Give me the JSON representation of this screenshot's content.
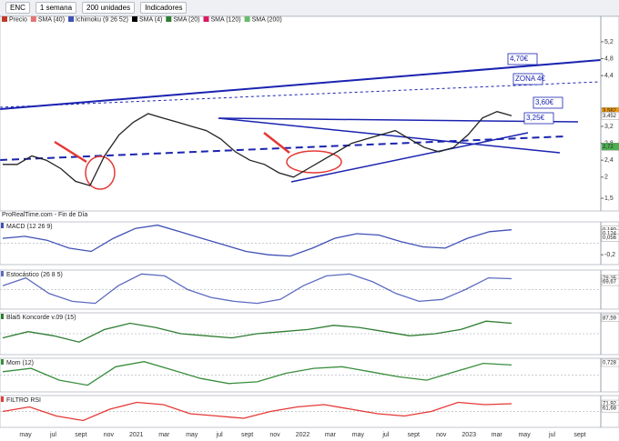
{
  "toolbar": {
    "items": [
      "ENC",
      "1 semana",
      "200 unidades",
      "Indicadores"
    ]
  },
  "legend": [
    {
      "name": "Precio",
      "color": "#c0392b"
    },
    {
      "name": "SMA (40)",
      "color": "#e57373"
    },
    {
      "name": "Ichimoku (9 26 52)",
      "color": "#3f51b5"
    },
    {
      "name": "SMA (4)",
      "color": "#000000"
    },
    {
      "name": "SMA (20)",
      "color": "#2e7d32"
    },
    {
      "name": "SMA (120)",
      "color": "#d81b60"
    },
    {
      "name": "SMA (200)",
      "color": "#66bb6a"
    }
  ],
  "source": "ProRealTime.com - Fin de Día",
  "time_axis": {
    "labels": [
      "may",
      "jul",
      "sept",
      "nov",
      "2021",
      "mar",
      "may",
      "jul",
      "sept",
      "nov",
      "2022",
      "mar",
      "may",
      "jul",
      "sept",
      "nov",
      "2023",
      "mar",
      "may",
      "jul",
      "sept"
    ]
  },
  "chart_data": [
    {
      "type": "line",
      "series": [
        {
          "color": "#222222",
          "values": [
            2.3,
            2.3,
            2.5,
            2.4,
            2.2,
            1.9,
            1.8,
            2.5,
            3.0,
            3.3,
            3.5,
            3.4,
            3.3,
            3.2,
            3.1,
            2.9,
            2.6,
            2.4,
            2.3,
            2.1,
            2.0,
            2.2,
            2.4,
            2.6,
            2.8,
            2.9,
            3.0,
            3.1,
            2.9,
            2.7,
            2.6,
            2.7,
            3.0,
            3.4,
            3.55,
            3.45
          ]
        }
      ],
      "ylim": [
        1.2,
        5.8
      ],
      "yticks": [
        {
          "value": 1.5,
          "label": "1,5"
        },
        2,
        {
          "value": 2.4,
          "label": "2,4"
        },
        {
          "value": 2.8,
          "label": "2,8"
        },
        {
          "value": 3.2,
          "label": "3,2"
        },
        {
          "value": 4.4,
          "label": "4,4"
        },
        {
          "value": 4.8,
          "label": "4,8"
        },
        {
          "value": 5.2,
          "label": "5,2"
        }
      ],
      "last_values": [
        {
          "value": 3.562,
          "label": "3,562",
          "color": "#f39c12"
        },
        {
          "value": 3.452,
          "label": "3,452",
          "color": "#ffffff"
        },
        {
          "value": 2.72,
          "label": "2,72",
          "color": "#4caf50"
        }
      ],
      "annotations": [
        "4,70€",
        "ZONA 4€",
        "3,60€",
        "3,25€"
      ]
    },
    {
      "type": "line",
      "title": "MACD (12 26 9)",
      "series": [
        {
          "color": "#3f51b5",
          "values": [
            0.05,
            0.08,
            0.02,
            -0.1,
            -0.15,
            0.05,
            0.2,
            0.25,
            0.15,
            0.05,
            -0.05,
            -0.15,
            -0.2,
            -0.22,
            -0.1,
            0.05,
            0.12,
            0.1,
            0.0,
            -0.08,
            -0.1,
            0.05,
            0.15,
            0.18
          ]
        }
      ],
      "ylim": [
        -0.35,
        0.3
      ],
      "yticks": [
        {
          "value": -0.2,
          "label": "-0,2"
        }
      ],
      "last_values": [
        {
          "value": 0.18,
          "label": "0,180",
          "color": "#ffffff"
        },
        {
          "value": 0.124,
          "label": "0,124",
          "color": "#ffffff"
        },
        {
          "value": 0.056,
          "label": "0,056",
          "color": "#ffffff"
        }
      ]
    },
    {
      "type": "line",
      "title": "Estocástico (26 8 5)",
      "series": [
        {
          "color": "#5c6bc0",
          "values": [
            60,
            80,
            40,
            20,
            15,
            60,
            90,
            85,
            50,
            30,
            20,
            15,
            25,
            60,
            85,
            90,
            70,
            40,
            20,
            25,
            50,
            80,
            78
          ]
        }
      ],
      "ylim": [
        0,
        100
      ],
      "yticks": [],
      "last_values": [
        {
          "value": 78.25,
          "label": "78,25",
          "color": "#ffffff"
        },
        {
          "value": 69.67,
          "label": "69,67",
          "color": "#ffffff"
        }
      ]
    },
    {
      "type": "line",
      "title": "Blai5 Koncorde v.09 (15)",
      "series": [
        {
          "color": "#2e7d32",
          "values": [
            40,
            55,
            45,
            30,
            60,
            75,
            65,
            50,
            45,
            40,
            50,
            55,
            60,
            70,
            65,
            55,
            45,
            50,
            60,
            80,
            75
          ]
        }
      ],
      "ylim": [
        0,
        100
      ],
      "yticks": [],
      "last_values": [
        {
          "value": 87.59,
          "label": "87,59",
          "color": "#ffffff"
        }
      ]
    },
    {
      "type": "line",
      "title": "Mom (12)",
      "series": [
        {
          "color": "#388e3c",
          "values": [
            0.2,
            0.4,
            -0.3,
            -0.6,
            0.5,
            0.8,
            0.3,
            -0.2,
            -0.5,
            -0.4,
            0.1,
            0.4,
            0.5,
            0.2,
            -0.1,
            -0.3,
            0.2,
            0.7,
            0.6
          ]
        }
      ],
      "ylim": [
        -1,
        1
      ],
      "yticks": [],
      "last_values": [
        {
          "value": 0.728,
          "label": "0,728",
          "color": "#ffffff"
        }
      ]
    },
    {
      "type": "line",
      "title": "FILTRO RSI",
      "series": [
        {
          "color": "#e53935",
          "values": [
            55,
            65,
            45,
            35,
            60,
            75,
            70,
            50,
            45,
            40,
            55,
            65,
            70,
            60,
            50,
            45,
            55,
            75,
            70,
            72
          ]
        }
      ],
      "ylim": [
        20,
        90
      ],
      "yticks": [],
      "last_values": [
        {
          "value": 71.92,
          "label": "71,92",
          "color": "#ffffff"
        },
        {
          "value": 61.68,
          "label": "61,68",
          "color": "#ffffff"
        }
      ]
    }
  ]
}
